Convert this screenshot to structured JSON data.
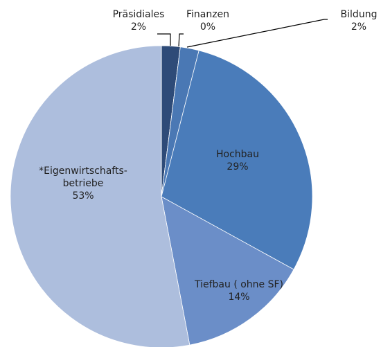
{
  "chart_data": {
    "type": "pie",
    "categories": [
      "Präsidiales",
      "Finanzen",
      "Bildung",
      "Hochbau",
      "Tiefbau ( ohne SF)",
      "*Eigenwirtschafts-\nbetriebe"
    ],
    "values": [
      2,
      0,
      2,
      29,
      14,
      53
    ],
    "value_labels": [
      "2%",
      "0%",
      "2%",
      "29%",
      "14%",
      "53%"
    ],
    "colors": [
      "#2e4b78",
      "#4a6fa5",
      "#4a78b4",
      "#4a7cba",
      "#6b8ec8",
      "#adbedd"
    ]
  }
}
